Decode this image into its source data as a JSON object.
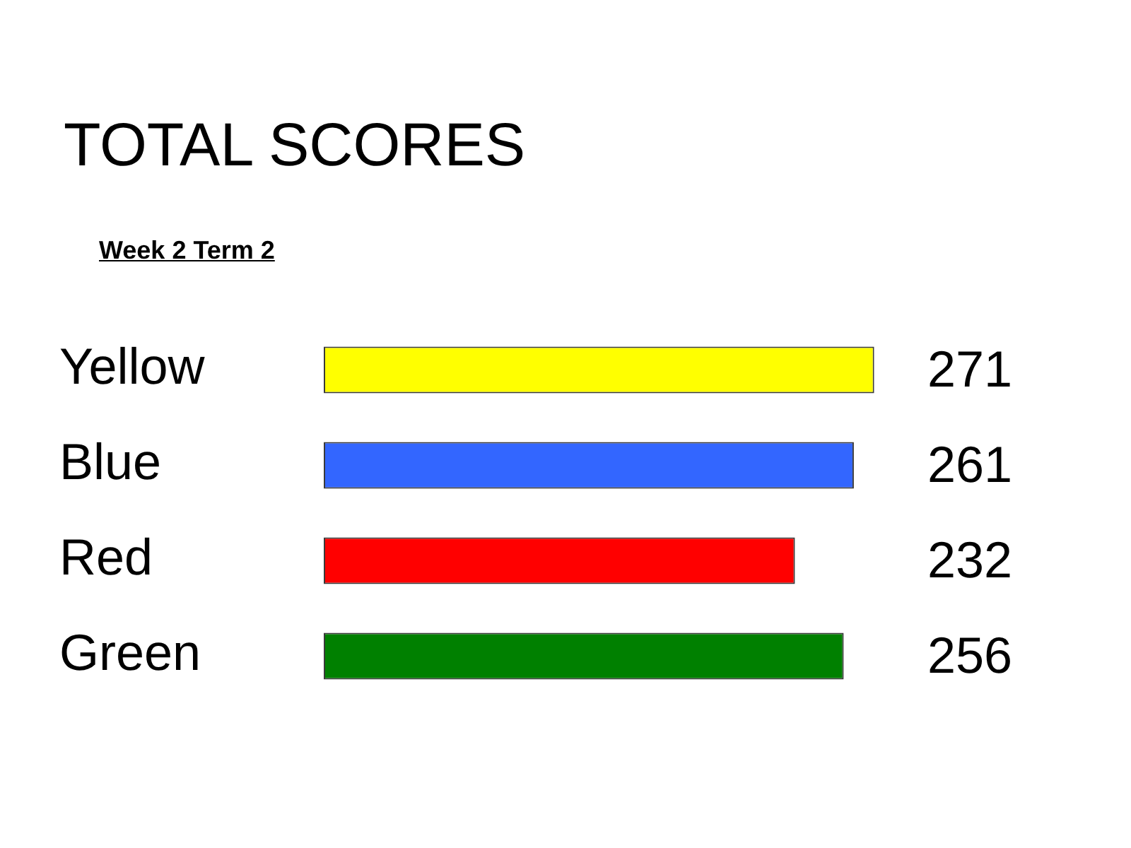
{
  "chart_data": {
    "type": "bar",
    "orientation": "horizontal",
    "title": "TOTAL SCORES",
    "subtitle": "Week 2 Term 2",
    "categories": [
      "Yellow",
      "Blue",
      "Red",
      "Green"
    ],
    "values": [
      271,
      261,
      232,
      256
    ],
    "colors": [
      "#ffff00",
      "#3366ff",
      "#ff0000",
      "#008000"
    ],
    "tick_labels": "y",
    "grid": false,
    "legend": false,
    "data_labels": true
  }
}
